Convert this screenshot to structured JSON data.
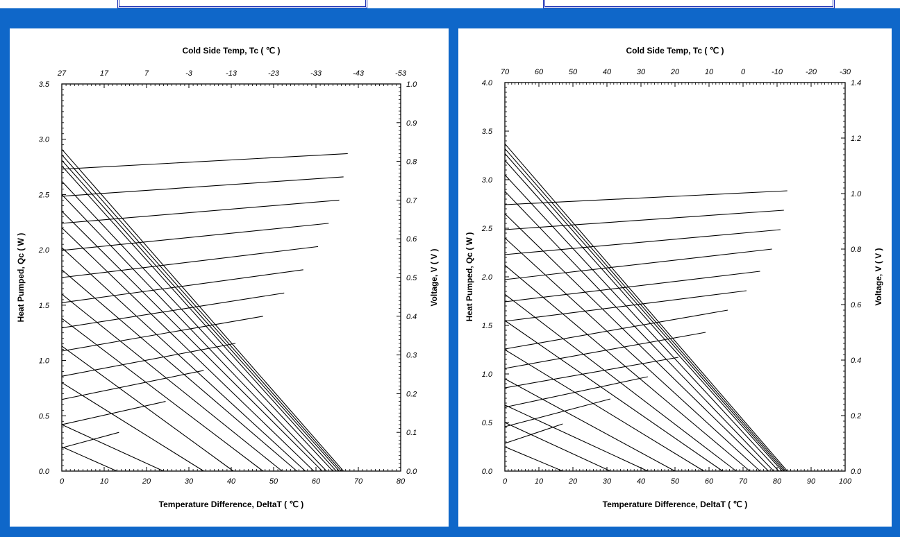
{
  "colors": {
    "frame_blue": "#0f67c9",
    "tab_border": "#1a2fb5",
    "line": "#000000"
  },
  "chart_data": [
    {
      "type": "line",
      "xlabel": "Temperature Difference, DeltaT ( ℃ )",
      "ylabel": "Heat Pumped, Qc ( W )",
      "y2label": "Voltage, V ( V )",
      "x2label": "Cold Side Temp, Tc ( ℃ )",
      "xlim": [
        0,
        80
      ],
      "ylim": [
        0,
        3.5
      ],
      "y2lim": [
        0,
        1.0
      ],
      "x_ticks": [
        "0",
        "10",
        "20",
        "30",
        "40",
        "50",
        "60",
        "70",
        "80"
      ],
      "y_ticks": [
        "0.0",
        "0.5",
        "1.0",
        "1.5",
        "2.0",
        "2.5",
        "3.0",
        "3.5"
      ],
      "y2_ticks": [
        "0.0",
        "0.1",
        "0.2",
        "0.3",
        "0.4",
        "0.5",
        "0.6",
        "0.7",
        "0.8",
        "0.9",
        "1.0"
      ],
      "x2_ticks": [
        "27",
        "17",
        "7",
        "-3",
        "-13",
        "-23",
        "-33",
        "-43",
        "-53"
      ],
      "grid": false,
      "qc_lines": [
        {
          "qc0": 2.91,
          "dtmax": 66.5
        },
        {
          "qc0": 2.86,
          "dtmax": 66.0
        },
        {
          "qc0": 2.81,
          "dtmax": 65.5
        },
        {
          "qc0": 2.76,
          "dtmax": 64.8
        },
        {
          "qc0": 2.62,
          "dtmax": 64.0
        },
        {
          "qc0": 2.5,
          "dtmax": 62.5
        },
        {
          "qc0": 2.35,
          "dtmax": 61.5
        },
        {
          "qc0": 2.2,
          "dtmax": 59.5
        },
        {
          "qc0": 2.02,
          "dtmax": 57.5
        },
        {
          "qc0": 1.82,
          "dtmax": 55.5
        },
        {
          "qc0": 1.6,
          "dtmax": 52.0
        },
        {
          "qc0": 1.38,
          "dtmax": 47.5
        },
        {
          "qc0": 1.13,
          "dtmax": 40.5
        },
        {
          "qc0": 0.8,
          "dtmax": 33.5
        },
        {
          "qc0": 0.42,
          "dtmax": 24.0
        },
        {
          "qc0": 0.22,
          "dtmax": 13.0
        }
      ],
      "v_lines": [
        {
          "v0": 0.06,
          "v1": 0.1,
          "dtmax": 13.5
        },
        {
          "v0": 0.12,
          "v1": 0.18,
          "dtmax": 24.5
        },
        {
          "v0": 0.185,
          "v1": 0.26,
          "dtmax": 33.5
        },
        {
          "v0": 0.245,
          "v1": 0.33,
          "dtmax": 41.0
        },
        {
          "v0": 0.31,
          "v1": 0.4,
          "dtmax": 47.5
        },
        {
          "v0": 0.37,
          "v1": 0.46,
          "dtmax": 52.5
        },
        {
          "v0": 0.435,
          "v1": 0.52,
          "dtmax": 57.0
        },
        {
          "v0": 0.5,
          "v1": 0.58,
          "dtmax": 60.5
        },
        {
          "v0": 0.57,
          "v1": 0.64,
          "dtmax": 63.0
        },
        {
          "v0": 0.64,
          "v1": 0.7,
          "dtmax": 65.5
        },
        {
          "v0": 0.71,
          "v1": 0.76,
          "dtmax": 66.5
        },
        {
          "v0": 0.78,
          "v1": 0.82,
          "dtmax": 67.5
        }
      ]
    },
    {
      "type": "line",
      "xlabel": "Temperature Difference, DeltaT ( ℃ )",
      "ylabel": "Heat Pumped, Qc ( W )",
      "y2label": "Voltage, V ( V )",
      "x2label": "Cold Side Temp, Tc ( ℃ )",
      "xlim": [
        0,
        100
      ],
      "ylim": [
        0,
        4.0
      ],
      "y2lim": [
        0,
        1.4
      ],
      "x_ticks": [
        "0",
        "10",
        "20",
        "30",
        "40",
        "50",
        "60",
        "70",
        "80",
        "90",
        "100"
      ],
      "y_ticks": [
        "0.0",
        "0.5",
        "1.0",
        "1.5",
        "2.0",
        "2.5",
        "3.0",
        "3.5",
        "4.0"
      ],
      "y2_ticks": [
        "0.0",
        "0.2",
        "0.4",
        "0.6",
        "0.8",
        "1.0",
        "1.2",
        "1.4"
      ],
      "x2_ticks": [
        "70",
        "60",
        "50",
        "40",
        "30",
        "20",
        "10",
        "0",
        "-10",
        "-20",
        "-30"
      ],
      "grid": false,
      "qc_lines": [
        {
          "qc0": 3.37,
          "dtmax": 83.0
        },
        {
          "qc0": 3.32,
          "dtmax": 82.5
        },
        {
          "qc0": 3.27,
          "dtmax": 82.0
        },
        {
          "qc0": 3.2,
          "dtmax": 81.5
        },
        {
          "qc0": 3.05,
          "dtmax": 80.5
        },
        {
          "qc0": 2.88,
          "dtmax": 79.0
        },
        {
          "qc0": 2.65,
          "dtmax": 77.5
        },
        {
          "qc0": 2.4,
          "dtmax": 75.0
        },
        {
          "qc0": 2.12,
          "dtmax": 72.0
        },
        {
          "qc0": 1.82,
          "dtmax": 68.0
        },
        {
          "qc0": 1.55,
          "dtmax": 64.0
        },
        {
          "qc0": 1.25,
          "dtmax": 58.5
        },
        {
          "qc0": 0.95,
          "dtmax": 50.0
        },
        {
          "qc0": 0.68,
          "dtmax": 42.0
        },
        {
          "qc0": 0.5,
          "dtmax": 31.0
        },
        {
          "qc0": 0.25,
          "dtmax": 17.0
        }
      ],
      "v_lines": [
        {
          "v0": 0.1,
          "v1": 0.17,
          "dtmax": 17.0
        },
        {
          "v0": 0.16,
          "v1": 0.26,
          "dtmax": 31.0
        },
        {
          "v0": 0.23,
          "v1": 0.34,
          "dtmax": 42.0
        },
        {
          "v0": 0.3,
          "v1": 0.41,
          "dtmax": 51.0
        },
        {
          "v0": 0.37,
          "v1": 0.5,
          "dtmax": 59.0
        },
        {
          "v0": 0.44,
          "v1": 0.58,
          "dtmax": 65.5
        },
        {
          "v0": 0.54,
          "v1": 0.65,
          "dtmax": 71.0
        },
        {
          "v0": 0.61,
          "v1": 0.72,
          "dtmax": 75.0
        },
        {
          "v0": 0.69,
          "v1": 0.8,
          "dtmax": 78.5
        },
        {
          "v0": 0.78,
          "v1": 0.87,
          "dtmax": 81.0
        },
        {
          "v0": 0.87,
          "v1": 0.94,
          "dtmax": 82.0
        },
        {
          "v0": 0.96,
          "v1": 1.01,
          "dtmax": 83.0
        }
      ]
    }
  ]
}
